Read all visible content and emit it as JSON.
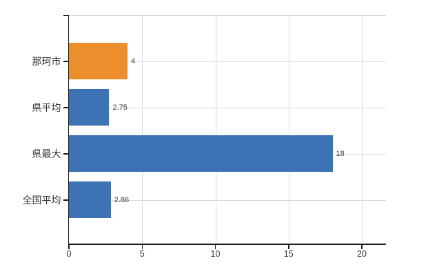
{
  "chart_data": {
    "type": "bar",
    "orientation": "horizontal",
    "categories": [
      "那珂市",
      "県平均",
      "県最大",
      "全国平均"
    ],
    "values": [
      4,
      2.75,
      18,
      2.86
    ],
    "value_labels": [
      "4",
      "2.75",
      "18",
      "2.86"
    ],
    "bar_colors": [
      "#ED8E2C",
      "#3D72B5",
      "#3D72B5",
      "#3D72B5"
    ],
    "xlim": [
      0,
      20
    ],
    "x_ticks": [
      0,
      5,
      10,
      15,
      20
    ],
    "x_tick_labels": [
      "0",
      "5",
      "10",
      "15",
      "20"
    ],
    "grid": true,
    "gridline_color": "#D9D9D9",
    "axis_color": "#1C1C1C",
    "category_label_color": "#333333",
    "tick_label_color": "#333333",
    "value_label_color": "#404040",
    "background": "#FFFFFF",
    "legend": "none",
    "title": ""
  }
}
